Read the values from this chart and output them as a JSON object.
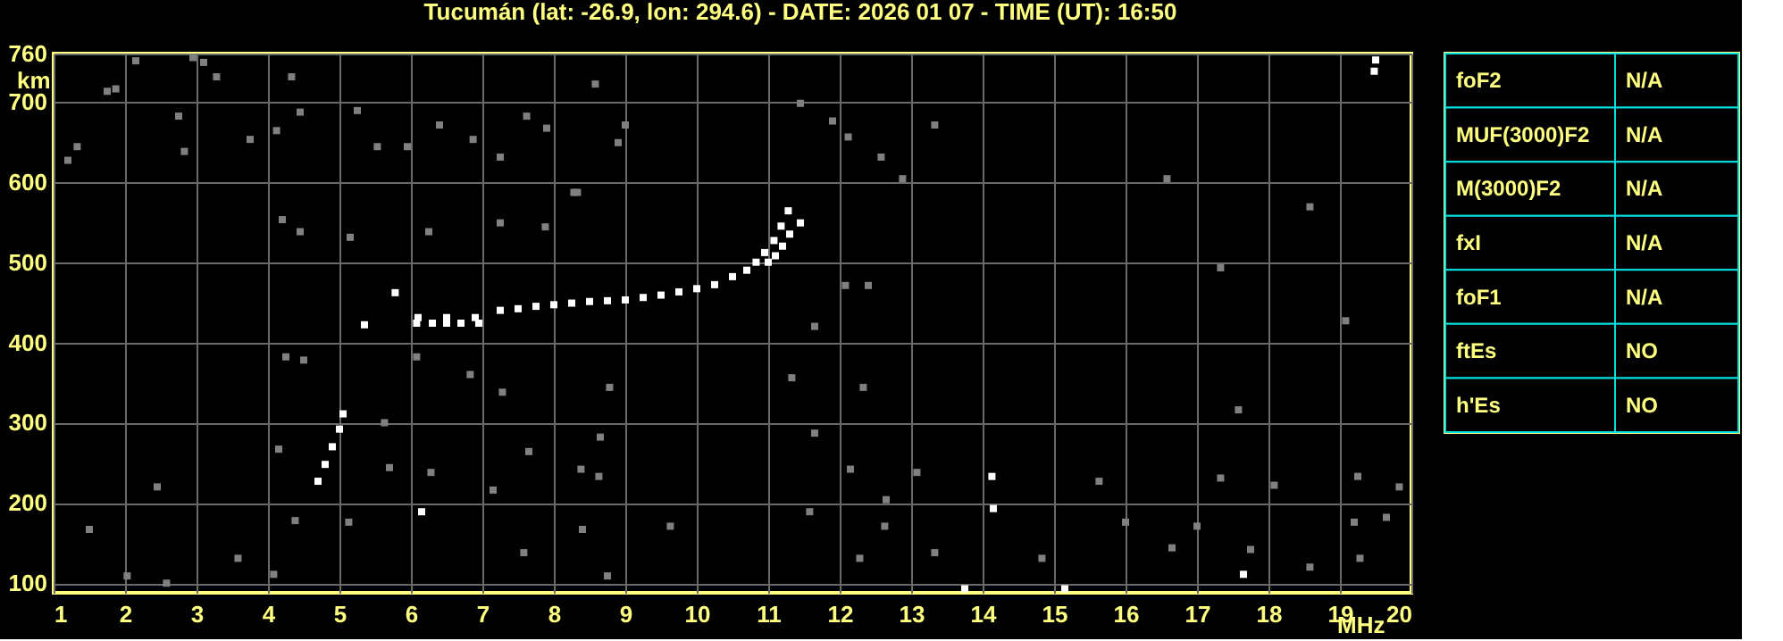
{
  "chart_data": [
    {
      "type": "scatter",
      "title": "Tucumán (lat: -26.9, lon: 294.6) - DATE: 2026 01 07 - TIME (UT): 16:50",
      "xlabel": "MHz",
      "ylabel": "km",
      "xlim": [
        1,
        20
      ],
      "ylim": [
        88,
        760
      ],
      "xticks": [
        1,
        2,
        3,
        4,
        5,
        6,
        7,
        8,
        9,
        10,
        11,
        12,
        13,
        14,
        15,
        16,
        17,
        18,
        19,
        20
      ],
      "yticks": [
        100,
        200,
        300,
        400,
        500,
        600,
        700,
        760
      ],
      "grid": true,
      "marker": "square",
      "legend": false,
      "series": [
        {
          "color": "#ffffff",
          "x": [
            4.7,
            4.8,
            4.9,
            5.0,
            5.05,
            5.35,
            5.78,
            6.08,
            6.3,
            6.5,
            6.7,
            6.95,
            6.1,
            6.5,
            6.9,
            7.25,
            7.5,
            7.75,
            8.0,
            8.25,
            8.5,
            8.75,
            9.0,
            9.25,
            9.5,
            9.75,
            10.0,
            10.25,
            10.5,
            10.7,
            10.83,
            10.95,
            11.08,
            11.18,
            11.28,
            11.0,
            11.1,
            11.2,
            11.3,
            11.45,
            6.15,
            14.13,
            14.15,
            17.65,
            13.75,
            15.15,
            19.48,
            19.5
          ],
          "values": [
            227,
            248,
            270,
            292,
            311,
            422,
            462,
            424,
            424,
            424,
            424,
            424,
            431,
            431,
            431,
            440,
            442,
            445,
            447,
            449,
            451,
            452,
            453,
            456,
            459,
            463,
            467,
            472,
            482,
            490,
            500,
            512,
            527,
            545,
            564,
            500,
            508,
            520,
            535,
            549,
            189,
            233,
            193,
            111,
            93,
            93,
            738,
            752
          ]
        },
        {
          "color": "#808080",
          "x": [
            1.75,
            1.87,
            2.15,
            2.95,
            3.1,
            3.28,
            2.75,
            1.33,
            1.2,
            2.83,
            3.75,
            4.12,
            4.45,
            4.33,
            5.25,
            5.53,
            5.95,
            6.4,
            6.87,
            7.25,
            7.62,
            7.9,
            8.58,
            8.9,
            9.0,
            11.45,
            11.9,
            12.12,
            12.58,
            12.88,
            8.33,
            4.2,
            4.45,
            5.15,
            6.25,
            7.25,
            7.88,
            8.28,
            4.25,
            4.5,
            6.08,
            6.83,
            7.28,
            8.78,
            11.33,
            12.33,
            12.08,
            12.4,
            11.65,
            5.63,
            7.65,
            8.38,
            4.15,
            6.28,
            11.65,
            12.15,
            5.7,
            8.65,
            1.5,
            2.03,
            2.58,
            3.58,
            4.08,
            4.38,
            5.13,
            7.58,
            8.4,
            8.75,
            9.63,
            11.58,
            12.28,
            12.63,
            2.45,
            8.63,
            7.15,
            13.08,
            15.63,
            17.33,
            18.08,
            19.25,
            19.83,
            12.65,
            16.0,
            17.0,
            19.2,
            19.65,
            14.83,
            16.65,
            17.75,
            19.28,
            13.33,
            18.58,
            18.58,
            16.58,
            13.33,
            17.58,
            19.08,
            17.33
          ],
          "values": [
            713,
            716,
            751,
            755,
            749,
            731,
            682,
            644,
            627,
            638,
            653,
            664,
            687,
            731,
            689,
            644,
            644,
            671,
            653,
            631,
            682,
            667,
            722,
            649,
            671,
            698,
            676,
            656,
            631,
            604,
            587,
            553,
            538,
            531,
            538,
            549,
            544,
            587,
            382,
            378,
            382,
            360,
            338,
            344,
            356,
            344,
            471,
            471,
            420,
            300,
            264,
            242,
            267,
            238,
            287,
            242,
            244,
            282,
            167,
            109,
            100,
            131,
            111,
            178,
            176,
            138,
            167,
            109,
            171,
            189,
            131,
            171,
            220,
            233,
            216,
            238,
            227,
            231,
            222,
            233,
            220,
            204,
            176,
            171,
            176,
            182,
            131,
            144,
            142,
            131,
            138,
            120,
            569,
            604,
            671,
            316,
            427,
            493
          ]
        }
      ]
    },
    {
      "type": "other",
      "categories": [
        "foF2",
        "MUF(3000)F2",
        "M(3000)F2",
        "fxI",
        "foF1",
        "ftEs",
        "h'Es"
      ],
      "value_labels": [
        "N/A",
        "N/A",
        "N/A",
        "N/A",
        "N/A",
        "NO",
        "NO"
      ]
    }
  ]
}
